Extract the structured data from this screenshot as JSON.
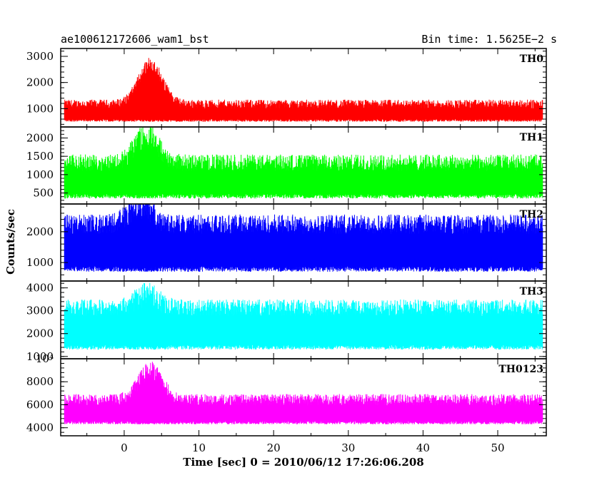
{
  "header": {
    "title_left": "ae100612172606_wam1_bst",
    "title_right": "Bin time: 1.5625E−2 s"
  },
  "chart_data": {
    "type": "line",
    "title": "ae100612172606_wam1_bst",
    "subtitle": "Bin time: 1.5625E−2 s",
    "xlabel": "Time [sec] 0 = 2010/06/12 17:26:06.208",
    "ylabel": "Counts/sec",
    "xlim": [
      -8.5,
      56.5
    ],
    "xticks": [
      0,
      10,
      20,
      30,
      40,
      50
    ],
    "data_x_range": [
      -8,
      56
    ],
    "panels": [
      {
        "name": "TH0",
        "color": "#ff0000",
        "ylim": [
          300,
          3300
        ],
        "ytick_labels": [
          "1000",
          "2000",
          "3000"
        ],
        "yticks": [
          1000,
          2000,
          3000
        ],
        "baseline_mean": 850,
        "baseline_amplitude": 380,
        "peak_time": 3.5,
        "peak_mean": 2200,
        "bottom_floor": 500
      },
      {
        "name": "TH1",
        "color": "#00ff00",
        "ylim": [
          200,
          2300
        ],
        "ytick_labels": [
          "500",
          "1000",
          "1500",
          "2000"
        ],
        "yticks": [
          500,
          1000,
          1500,
          2000
        ],
        "baseline_mean": 900,
        "baseline_amplitude": 500,
        "peak_time": 3.0,
        "peak_mean": 1400,
        "bottom_floor": 350
      },
      {
        "name": "TH2",
        "color": "#0000ff",
        "ylim": [
          400,
          2900
        ],
        "ytick_labels": [
          "1000",
          "2000"
        ],
        "yticks": [
          1000,
          2000
        ],
        "baseline_mean": 1650,
        "baseline_amplitude": 700,
        "peak_time": 2.0,
        "peak_mean": 1900,
        "bottom_floor": 700
      },
      {
        "name": "TH3",
        "color": "#00ffff",
        "ylim": [
          900,
          4300
        ],
        "ytick_labels": [
          "1000",
          "2000",
          "3000",
          "4000"
        ],
        "yticks": [
          1000,
          2000,
          3000,
          4000
        ],
        "baseline_mean": 2450,
        "baseline_amplitude": 800,
        "peak_time": 3.0,
        "peak_mean": 2600,
        "bottom_floor": 1300
      },
      {
        "name": "TH0123",
        "color": "#ff00ff",
        "ylim": [
          3300,
          10000
        ],
        "ytick_labels": [
          "4000",
          "6000",
          "8000",
          "10⁴"
        ],
        "yticks": [
          4000,
          6000,
          8000,
          10000
        ],
        "baseline_mean": 5500,
        "baseline_amplitude": 1100,
        "peak_time": 3.5,
        "peak_mean": 7500,
        "bottom_floor": 4300
      }
    ],
    "grid": false,
    "legend": "none"
  }
}
